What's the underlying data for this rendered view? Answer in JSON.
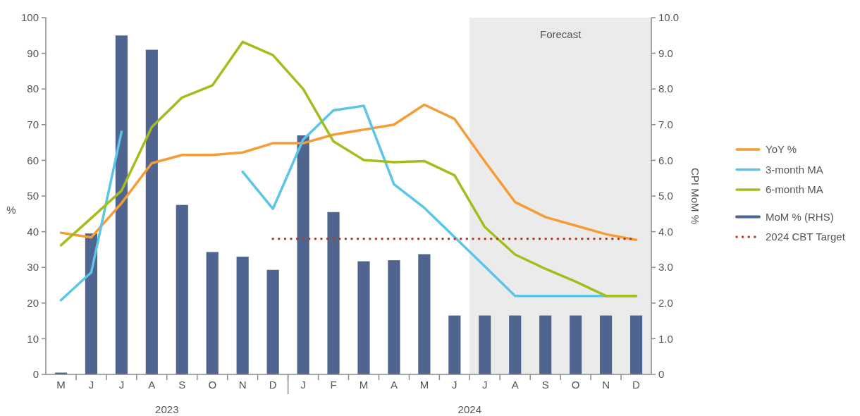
{
  "chart_data": {
    "type": "line",
    "ylabel": "%",
    "y2label": "CPI MoM %",
    "categories": [
      "M",
      "J",
      "J",
      "A",
      "S",
      "O",
      "N",
      "D",
      "J",
      "F",
      "M",
      "A",
      "M",
      "J",
      "J",
      "A",
      "S",
      "O",
      "N",
      "D"
    ],
    "ylim": [
      0,
      100
    ],
    "yticks": [
      0,
      10,
      20,
      30,
      40,
      50,
      60,
      70,
      80,
      90,
      100
    ],
    "y2lim": [
      0,
      10
    ],
    "y2ticks": [
      0,
      {
        "value": 1,
        "label": "1.0"
      },
      {
        "value": 2,
        "label": "2.0"
      },
      {
        "value": 3,
        "label": "3.0"
      },
      {
        "value": 4,
        "label": "4.0"
      },
      {
        "value": 5,
        "label": "5.0"
      },
      {
        "value": 6,
        "label": "6.0"
      },
      {
        "value": 7,
        "label": "7.0"
      },
      {
        "value": 8,
        "label": "8.0"
      },
      {
        "value": 9,
        "label": "9.0"
      },
      {
        "value": 10,
        "label": "10.0"
      }
    ],
    "series": [
      {
        "name": "YoY %",
        "color": "#f59c34",
        "values": [
          39.7,
          38.4,
          48,
          59.2,
          61.5,
          61.5,
          62.2,
          64.8,
          64.8,
          67.2,
          68.6,
          70,
          75.6,
          71.6,
          59.7,
          48.3,
          44.1,
          41.7,
          39.3,
          37.7
        ]
      },
      {
        "name": "3-month MA",
        "color": "#5bc5e8",
        "values": [
          20.8,
          28.6,
          68,
          null,
          null,
          null,
          56.8,
          46.4,
          65.8,
          74,
          75.3,
          53.3,
          46.7,
          38.5,
          30.3,
          22,
          22,
          22,
          22,
          22
        ]
      },
      {
        "name": "6-month MA",
        "color": "#a3be1c",
        "values": [
          36.2,
          43.8,
          51.5,
          69.3,
          77.6,
          81,
          93.2,
          89.5,
          80,
          65.3,
          60.1,
          59.5,
          59.8,
          55.8,
          41.3,
          33.6,
          29.6,
          26,
          22,
          22
        ]
      },
      {
        "name": "MoM % (RHS)",
        "type": "bar",
        "axis": "y2",
        "color": "#4f6590",
        "values": [
          0.05,
          3.95,
          9.5,
          9.1,
          4.75,
          3.43,
          3.3,
          2.93,
          6.7,
          4.55,
          3.17,
          3.2,
          3.37,
          1.65,
          1.65,
          1.65,
          1.65,
          1.65,
          1.65,
          1.65
        ]
      },
      {
        "name": "2024 CBT Target",
        "color": "#c0391a",
        "line_style": "dotted",
        "values": [
          null,
          null,
          null,
          null,
          null,
          null,
          null,
          38,
          38,
          38,
          38,
          38,
          38,
          38,
          38,
          38,
          38,
          38,
          38,
          38
        ]
      }
    ],
    "annotations": [
      "2023",
      "2024",
      "Forecast"
    ],
    "legend": "right",
    "grid": false
  }
}
